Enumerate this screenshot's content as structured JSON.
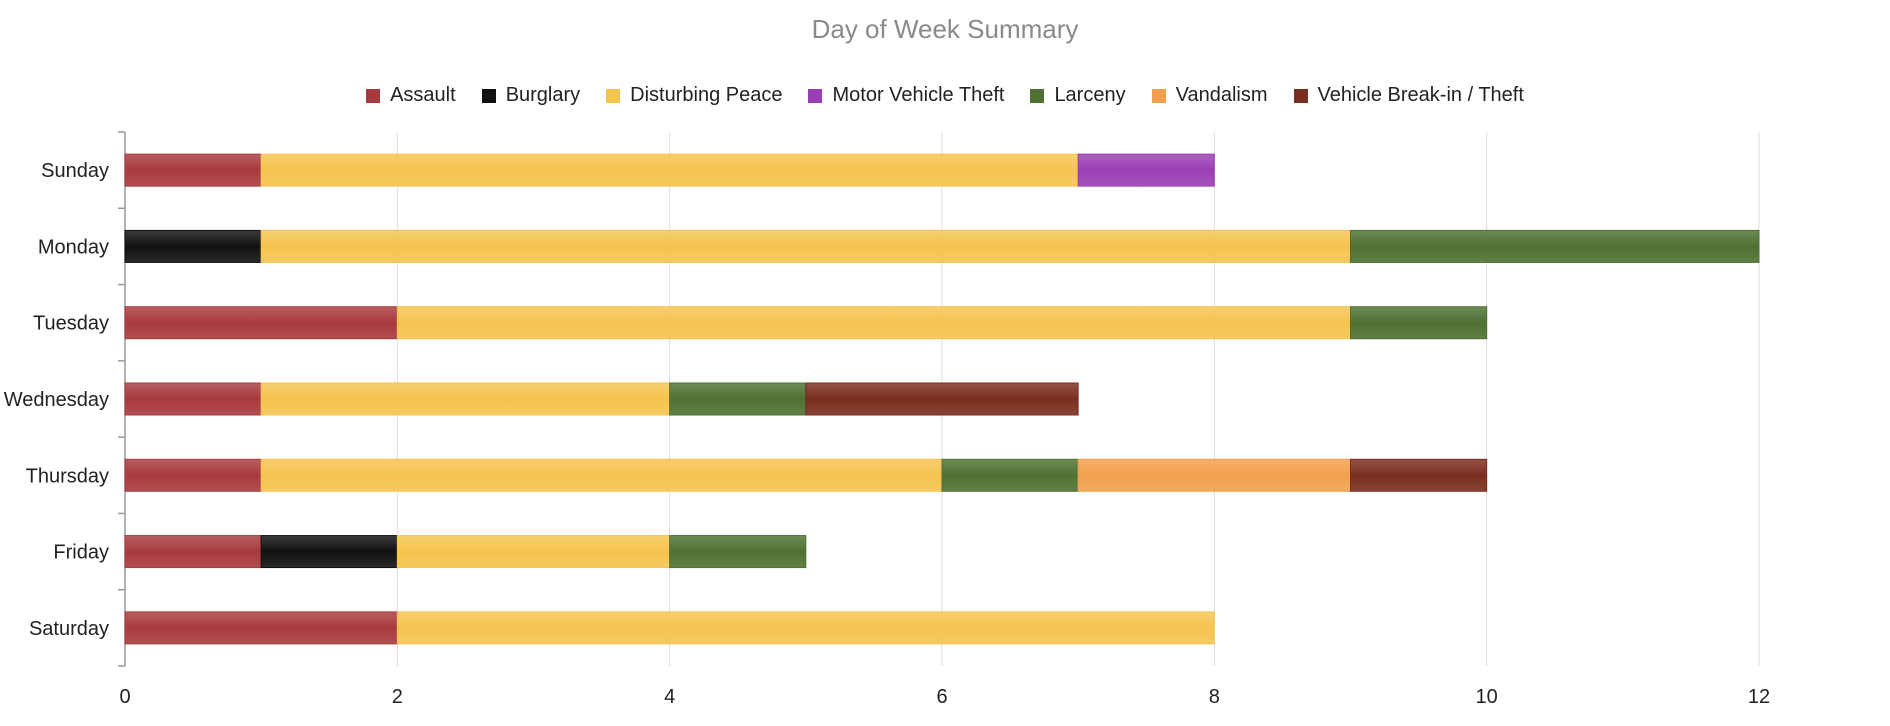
{
  "chart_data": {
    "type": "bar",
    "orientation": "horizontal",
    "stacked": true,
    "title": "Day of Week Summary",
    "xlabel": "",
    "ylabel": "",
    "xlim": [
      0,
      12
    ],
    "x_ticks": [
      "0",
      "2",
      "4",
      "6",
      "8",
      "10",
      "12"
    ],
    "grid": true,
    "legend_position": "top",
    "categories": [
      "Sunday",
      "Monday",
      "Tuesday",
      "Wednesday",
      "Thursday",
      "Friday",
      "Saturday"
    ],
    "series": [
      {
        "name": "Assault",
        "color": "#a83a3f",
        "values": [
          1,
          0,
          2,
          1,
          1,
          1,
          2
        ]
      },
      {
        "name": "Burglary",
        "color": "#111111",
        "values": [
          0,
          1,
          0,
          0,
          0,
          1,
          0
        ]
      },
      {
        "name": "Disturbing Peace",
        "color": "#f5c44f",
        "values": [
          6,
          8,
          7,
          3,
          5,
          2,
          6
        ]
      },
      {
        "name": "Motor Vehicle Theft",
        "color": "#9a3fb3",
        "values": [
          1,
          0,
          0,
          0,
          0,
          0,
          0
        ]
      },
      {
        "name": "Larceny",
        "color": "#4e7132",
        "values": [
          0,
          3,
          1,
          1,
          1,
          1,
          0
        ]
      },
      {
        "name": "Vandalism",
        "color": "#f2a04d",
        "values": [
          0,
          0,
          0,
          0,
          2,
          0,
          0
        ]
      },
      {
        "name": "Vehicle Break-in / Theft",
        "color": "#7a2e1f",
        "values": [
          0,
          0,
          0,
          2,
          1,
          0,
          0
        ]
      }
    ]
  }
}
